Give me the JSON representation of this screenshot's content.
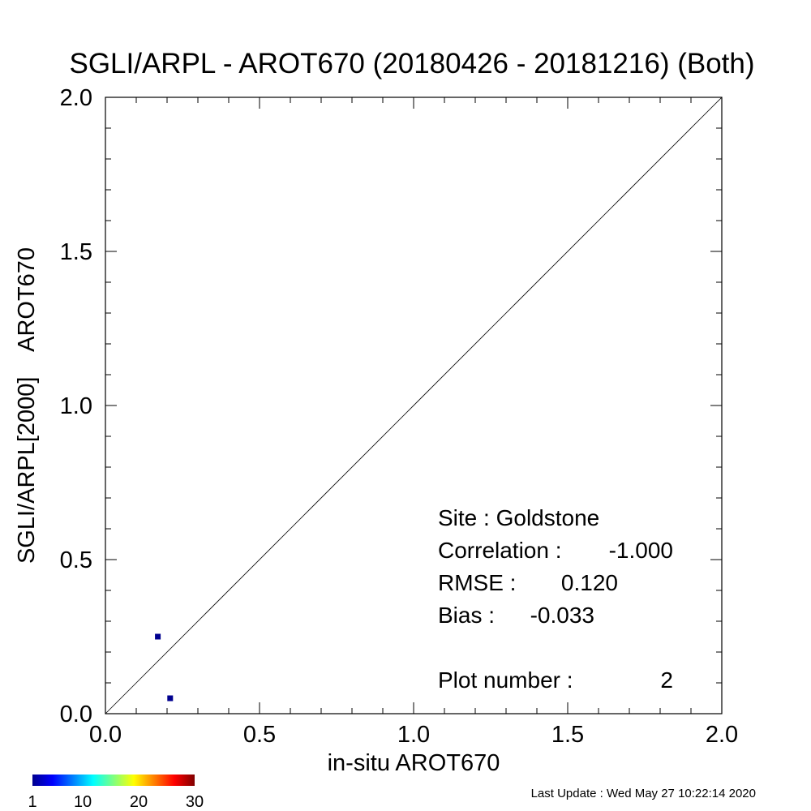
{
  "chart_data": {
    "type": "scatter",
    "title": "SGLI/ARPL - AROT670 (20180426 - 20181216) (Both)",
    "xlabel": "in-situ AROT670",
    "ylabel": "SGLI/ARPL[2000]    AROT670",
    "xlim": [
      0.0,
      2.0
    ],
    "ylim": [
      0.0,
      2.0
    ],
    "x_ticks": [
      "0.0",
      "0.5",
      "1.0",
      "1.5",
      "2.0"
    ],
    "y_ticks": [
      "0.0",
      "0.5",
      "1.0",
      "1.5",
      "2.0"
    ],
    "x_tick_values": [
      0.0,
      0.5,
      1.0,
      1.5,
      2.0
    ],
    "y_tick_values": [
      0.0,
      0.5,
      1.0,
      1.5,
      2.0
    ],
    "grid": false,
    "one_to_one_line": true,
    "point_color": "#00008f",
    "points": [
      {
        "x": 0.17,
        "y": 0.25
      },
      {
        "x": 0.21,
        "y": 0.05
      }
    ],
    "stats": [
      {
        "label": "Site :",
        "value": "Goldstone"
      },
      {
        "label": "Correlation :",
        "value": "-1.000"
      },
      {
        "label": "RMSE :",
        "value": "0.120"
      },
      {
        "label": "Bias :",
        "value": "-0.033"
      },
      {
        "label": "Plot number :",
        "value": "2"
      }
    ],
    "colorbar": {
      "ticks": [
        "1",
        "10",
        "20",
        "30"
      ],
      "tick_values": [
        1,
        10,
        20,
        30
      ],
      "range": [
        1,
        30
      ],
      "colormap": "jet"
    }
  },
  "footer": {
    "last_update": "Last Update : Wed May 27 10:22:14 2020"
  }
}
